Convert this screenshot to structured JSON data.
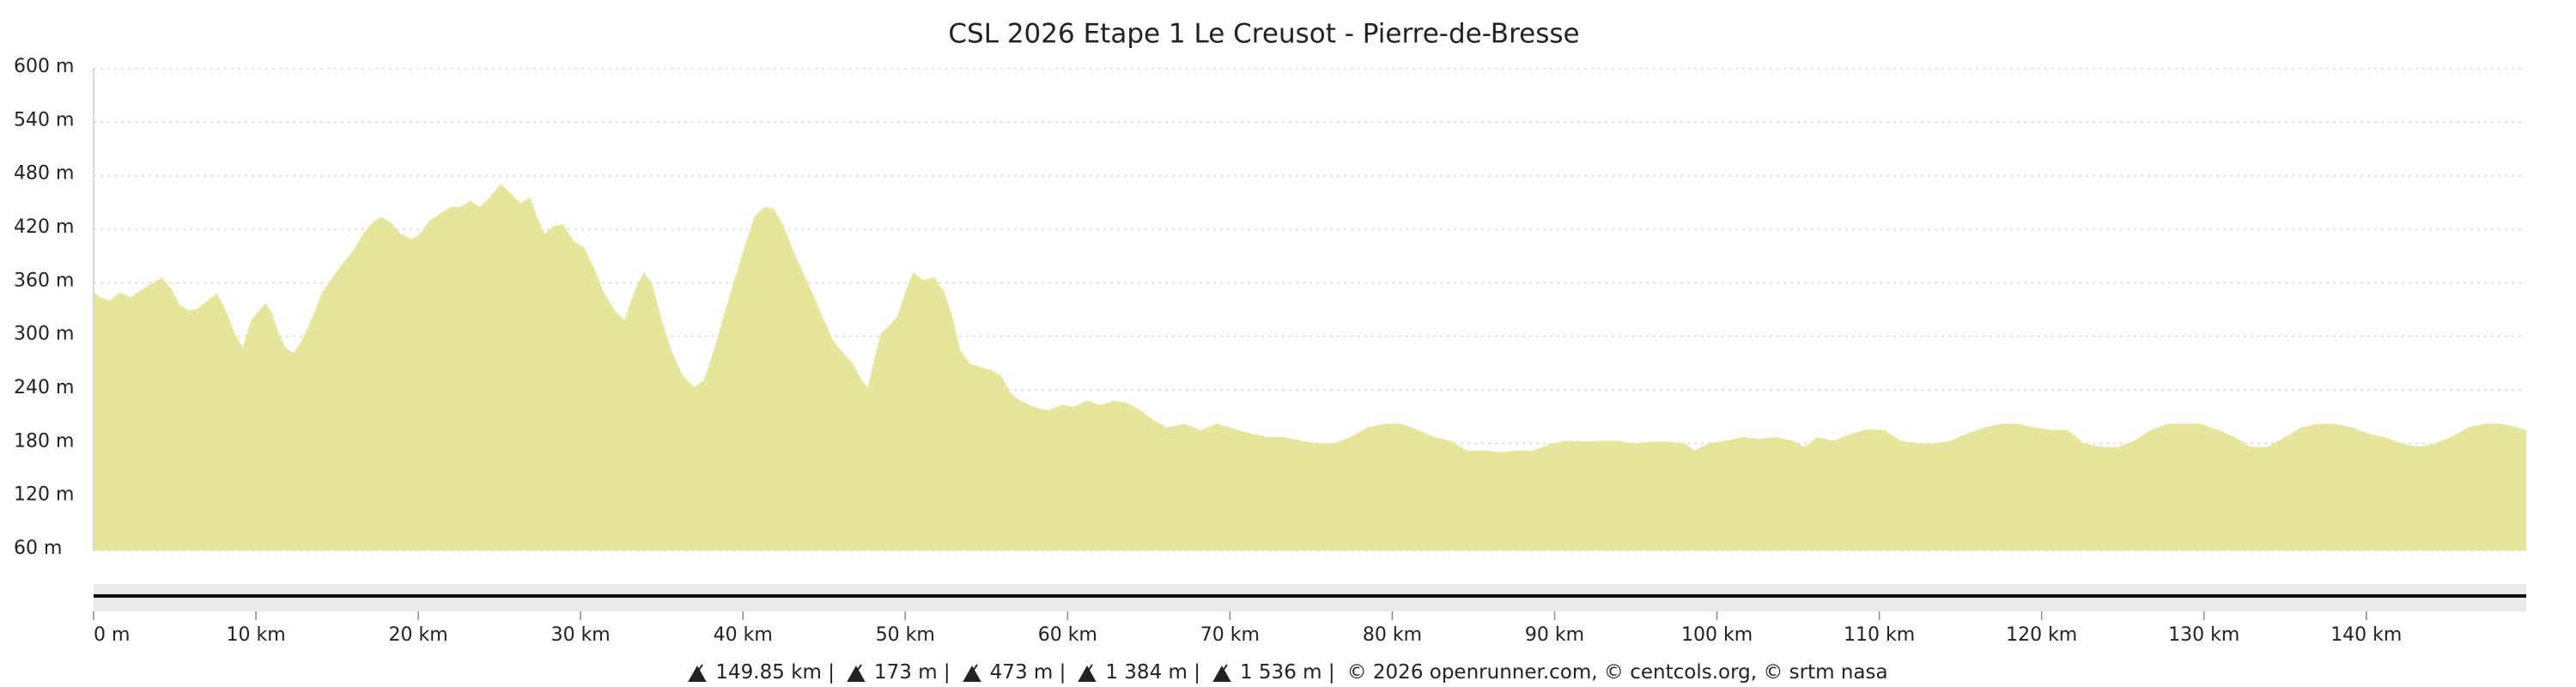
{
  "chart_data": {
    "type": "area",
    "title": "CSL 2026 Etape 1 Le Creusot - Pierre-de-Bresse",
    "color": "#e5e69b",
    "x": [
      0,
      0.4,
      1,
      1.6,
      2.3,
      3,
      3.6,
      4.2,
      4.8,
      5.3,
      5.9,
      6.4,
      7,
      7.6,
      8.1,
      8.7,
      9.2,
      9.7,
      10.2,
      10.6,
      11,
      11.4,
      11.8,
      12.3,
      12.8,
      13.5,
      14.1,
      14.8,
      15.4,
      16,
      16.6,
      17.2,
      17.7,
      18.3,
      18.9,
      19.6,
      20.1,
      20.7,
      21.4,
      22,
      22.6,
      23.2,
      23.8,
      24.4,
      25.1,
      25.7,
      26.3,
      26.9,
      27.3,
      27.8,
      28.3,
      28.9,
      29.6,
      30.2,
      30.8,
      31.4,
      32.1,
      32.7,
      33.3,
      33.9,
      34.4,
      35,
      35.6,
      36.3,
      37,
      37.6,
      38.2,
      38.8,
      39.4,
      40.1,
      40.7,
      41.3,
      41.9,
      42.5,
      43.1,
      43.8,
      44.4,
      45,
      45.6,
      46.2,
      46.8,
      47.3,
      47.7,
      48.1,
      48.5,
      49,
      49.5,
      50,
      50.5,
      51.1,
      51.8,
      52.4,
      52.9,
      53.4,
      54,
      54.6,
      55.3,
      55.9,
      56.5,
      57.1,
      57.9,
      58.8,
      59.6,
      60.4,
      61.2,
      62,
      62.9,
      63.7,
      64.5,
      65.3,
      66.1,
      67.2,
      68.2,
      69.2,
      70.3,
      71.3,
      72.3,
      73.3,
      74.4,
      75.4,
      76.4,
      77.4,
      78.5,
      79.5,
      80.5,
      81.6,
      82.6,
      83.6,
      84.6,
      85.7,
      86.7,
      87.7,
      88.7,
      89.8,
      90.8,
      91.8,
      92.9,
      93.9,
      94.9,
      95.9,
      97,
      98,
      98.6,
      99.5,
      100.5,
      101.6,
      102.6,
      103.6,
      104.7,
      105.4,
      106.2,
      107.2,
      108.3,
      109.3,
      110.3,
      111.3,
      112.4,
      113.4,
      114.4,
      115.4,
      116.5,
      117.5,
      118.5,
      119.5,
      120.6,
      121.6,
      122.6,
      123.7,
      124.7,
      125.7,
      126.7,
      127.8,
      128.8,
      129.8,
      130.9,
      131.9,
      132.9,
      133.9,
      135,
      136,
      137,
      138,
      139.1,
      140.1,
      141.1,
      142.2,
      143.2,
      144.2,
      145.2,
      146.3,
      147.3,
      148.3,
      149.3,
      149.85
    ],
    "values": [
      350,
      344,
      340,
      349,
      344,
      353,
      359,
      366,
      353,
      335,
      329,
      331,
      340,
      348,
      331,
      303,
      288,
      318,
      329,
      337,
      326,
      303,
      288,
      281,
      294,
      322,
      350,
      368,
      383,
      396,
      415,
      428,
      434,
      428,
      415,
      409,
      415,
      430,
      438,
      445,
      445,
      452,
      445,
      456,
      471,
      460,
      449,
      456,
      434,
      415,
      423,
      426,
      406,
      400,
      378,
      350,
      329,
      318,
      350,
      372,
      359,
      318,
      284,
      256,
      243,
      251,
      284,
      322,
      359,
      400,
      434,
      445,
      443,
      424,
      396,
      368,
      344,
      318,
      294,
      281,
      269,
      251,
      243,
      275,
      303,
      312,
      322,
      350,
      372,
      363,
      366,
      350,
      322,
      284,
      269,
      266,
      262,
      256,
      236,
      228,
      221,
      217,
      223,
      221,
      228,
      223,
      228,
      225,
      217,
      206,
      198,
      202,
      195,
      202,
      196,
      191,
      187,
      187,
      183,
      180,
      180,
      187,
      198,
      202,
      202,
      195,
      187,
      183,
      172,
      172,
      170,
      172,
      172,
      180,
      183,
      182,
      183,
      183,
      180,
      182,
      182,
      180,
      172,
      180,
      183,
      187,
      185,
      187,
      183,
      176,
      187,
      183,
      191,
      196,
      195,
      183,
      180,
      180,
      183,
      191,
      198,
      202,
      202,
      198,
      195,
      195,
      180,
      176,
      176,
      183,
      195,
      202,
      202,
      202,
      195,
      187,
      176,
      176,
      187,
      198,
      202,
      202,
      198,
      191,
      187,
      180,
      176,
      180,
      187,
      198,
      202,
      202,
      198,
      195
    ],
    "xlim": [
      0,
      149.85
    ],
    "ylim": [
      60,
      600
    ],
    "yticks": [
      {
        "value": 60,
        "label": "60 m"
      },
      {
        "value": 120,
        "label": "120 m"
      },
      {
        "value": 180,
        "label": "180 m"
      },
      {
        "value": 240,
        "label": "240 m"
      },
      {
        "value": 300,
        "label": "300 m"
      },
      {
        "value": 360,
        "label": "360 m"
      },
      {
        "value": 420,
        "label": "420 m"
      },
      {
        "value": 480,
        "label": "480 m"
      },
      {
        "value": 540,
        "label": "540 m"
      },
      {
        "value": 600,
        "label": "600 m"
      }
    ],
    "xticks": [
      {
        "value": 0,
        "label": "0 m"
      },
      {
        "value": 10,
        "label": "10 km"
      },
      {
        "value": 20,
        "label": "20 km"
      },
      {
        "value": 30,
        "label": "30 km"
      },
      {
        "value": 40,
        "label": "40 km"
      },
      {
        "value": 50,
        "label": "50 km"
      },
      {
        "value": 60,
        "label": "60 km"
      },
      {
        "value": 70,
        "label": "70 km"
      },
      {
        "value": 80,
        "label": "80 km"
      },
      {
        "value": 90,
        "label": "90 km"
      },
      {
        "value": 100,
        "label": "100 km"
      },
      {
        "value": 110,
        "label": "110 km"
      },
      {
        "value": 120,
        "label": "120 km"
      },
      {
        "value": 130,
        "label": "130 km"
      },
      {
        "value": 140,
        "label": "140 km"
      }
    ],
    "grid": true
  },
  "footer": {
    "stats": [
      "149.85 km |",
      "173 m |",
      "473 m |",
      "1 384 m |",
      "1 536 m |"
    ],
    "credits": "© 2026 openrunner.com, © centcols.org, © srtm nasa"
  }
}
